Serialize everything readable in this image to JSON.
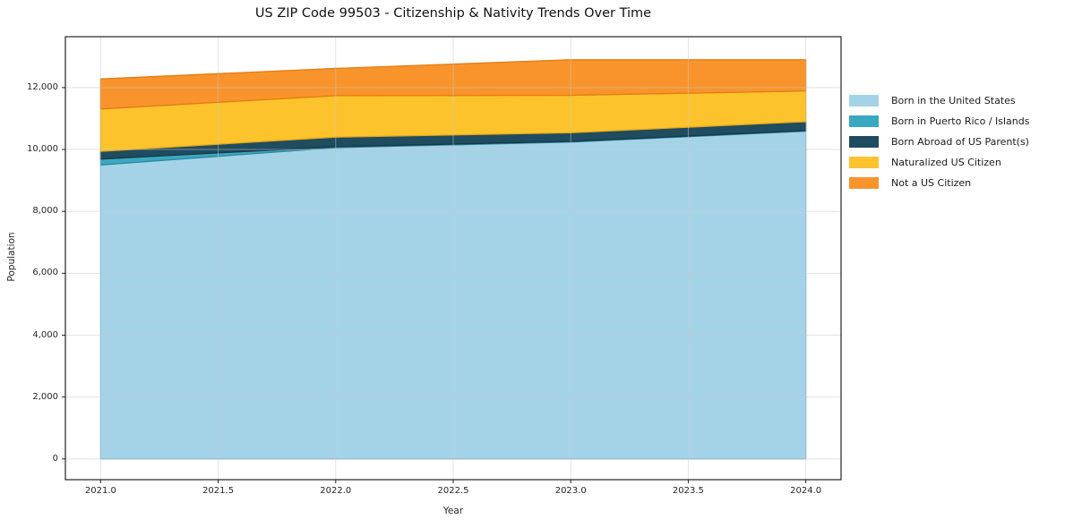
{
  "chart_data": {
    "type": "area",
    "stacked": true,
    "title": "US ZIP Code 99503 - Citizenship & Nativity Trends Over Time",
    "xlabel": "Year",
    "ylabel": "Population",
    "x": [
      2021,
      2022,
      2023,
      2024
    ],
    "series": [
      {
        "name": "Born in the United States",
        "color": "#a4d3e8",
        "edge": "#7fb9d6",
        "values": [
          9500,
          10060,
          10240,
          10590
        ]
      },
      {
        "name": "Born in Puerto Rico / Islands",
        "color": "#3aa8c1",
        "edge": "#2e89a0",
        "values": [
          190,
          30,
          20,
          20
        ]
      },
      {
        "name": "Born Abroad of US Parent(s)",
        "color": "#1f4c5f",
        "edge": "#173a49",
        "values": [
          250,
          310,
          280,
          290
        ]
      },
      {
        "name": "Naturalized US Citizen",
        "color": "#fcc32d",
        "edge": "#e3a817",
        "values": [
          1370,
          1340,
          1210,
          990
        ]
      },
      {
        "name": "Not a US Citizen",
        "color": "#f8942b",
        "edge": "#e07e14",
        "values": [
          970,
          880,
          1150,
          1010
        ]
      }
    ],
    "xticks": [
      {
        "value": 2021.0,
        "label": "2021.0"
      },
      {
        "value": 2021.5,
        "label": "2021.5"
      },
      {
        "value": 2022.0,
        "label": "2022.0"
      },
      {
        "value": 2022.5,
        "label": "2022.5"
      },
      {
        "value": 2023.0,
        "label": "2023.0"
      },
      {
        "value": 2023.5,
        "label": "2023.5"
      },
      {
        "value": 2024.0,
        "label": "2024.0"
      }
    ],
    "yticks": [
      {
        "value": 0,
        "label": "0"
      },
      {
        "value": 2000,
        "label": "2,000"
      },
      {
        "value": 4000,
        "label": "4,000"
      },
      {
        "value": 6000,
        "label": "6,000"
      },
      {
        "value": 8000,
        "label": "8,000"
      },
      {
        "value": 10000,
        "label": "10,000"
      },
      {
        "value": 12000,
        "label": "12,000"
      },
      {
        "value": 12950,
        "label": ""
      }
    ],
    "xlim": [
      2020.85,
      2024.15
    ],
    "ylim": [
      -670,
      13645
    ],
    "grid": true,
    "legend": {
      "position": "outside-right",
      "frame": false
    }
  },
  "colors": {
    "background": "#ffffff",
    "spine": "#222222",
    "grid": "#c9c9c9",
    "tick_text": "#262626",
    "title_text": "#111111"
  }
}
